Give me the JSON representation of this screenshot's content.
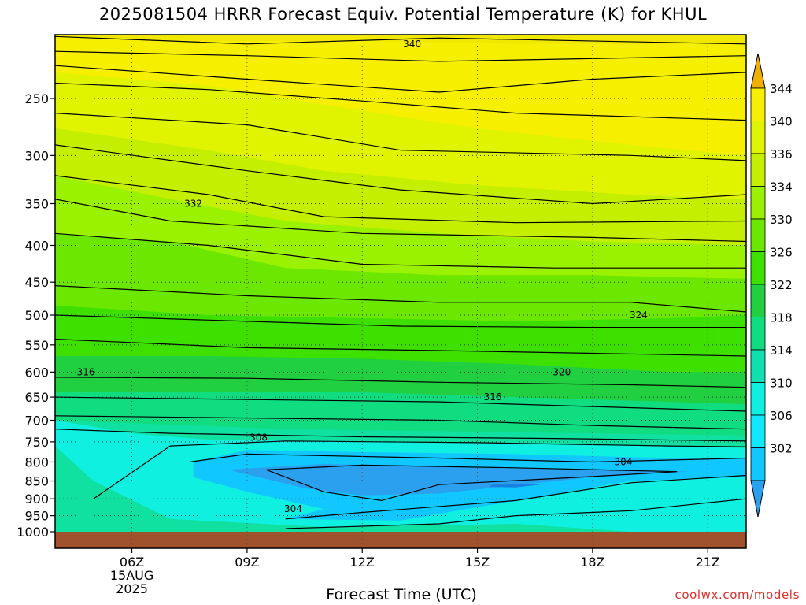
{
  "chart_data": {
    "type": "heatmap",
    "title": "2025081504 HRRR Forecast Equiv. Potential Temperature (K) for KHUL",
    "xlabel": "Forecast Time (UTC)",
    "ylabel": "",
    "x_ticks": [
      {
        "label": "06Z",
        "hour": 6,
        "sub": [
          "15AUG",
          "2025"
        ]
      },
      {
        "label": "09Z",
        "hour": 9
      },
      {
        "label": "12Z",
        "hour": 12
      },
      {
        "label": "15Z",
        "hour": 15
      },
      {
        "label": "18Z",
        "hour": 18
      },
      {
        "label": "21Z",
        "hour": 21
      }
    ],
    "xlim": [
      4,
      22
    ],
    "y_axis": "pressure (hPa), log scale, decreasing upward",
    "y_ticks": [
      250,
      300,
      350,
      400,
      450,
      500,
      550,
      600,
      650,
      700,
      750,
      800,
      850,
      900,
      950,
      1000
    ],
    "ylim": [
      1000,
      200
    ],
    "colorbar": {
      "labels": [
        344,
        340,
        336,
        334,
        330,
        326,
        322,
        318,
        314,
        310,
        306,
        302
      ],
      "colors": [
        "#f0b000",
        "#f6f000",
        "#e0f400",
        "#c4f000",
        "#9af200",
        "#6ce800",
        "#3ee000",
        "#20d040",
        "#10dc80",
        "#10e0b0",
        "#10f0e0",
        "#10e8ff",
        "#10c8ff",
        "#2aa0ee"
      ]
    },
    "contour_levels": [
      {
        "pressure": 210,
        "value": 340,
        "label": "340"
      },
      {
        "pressure": 350,
        "value": 332,
        "label": "332"
      },
      {
        "pressure": 500,
        "value": 324,
        "label": "324"
      },
      {
        "pressure": 600,
        "value": 316,
        "label": "316"
      },
      {
        "pressure": 600,
        "value": 320,
        "label": "320"
      },
      {
        "pressure": 650,
        "value": 316,
        "label": "316"
      },
      {
        "pressure": 740,
        "value": 308,
        "label": "308"
      },
      {
        "pressure": 800,
        "value": 304,
        "label": "304"
      },
      {
        "pressure": 930,
        "value": 304,
        "label": "304"
      }
    ],
    "grid": true,
    "legend": "right"
  },
  "credit": "coolwx.com/models"
}
